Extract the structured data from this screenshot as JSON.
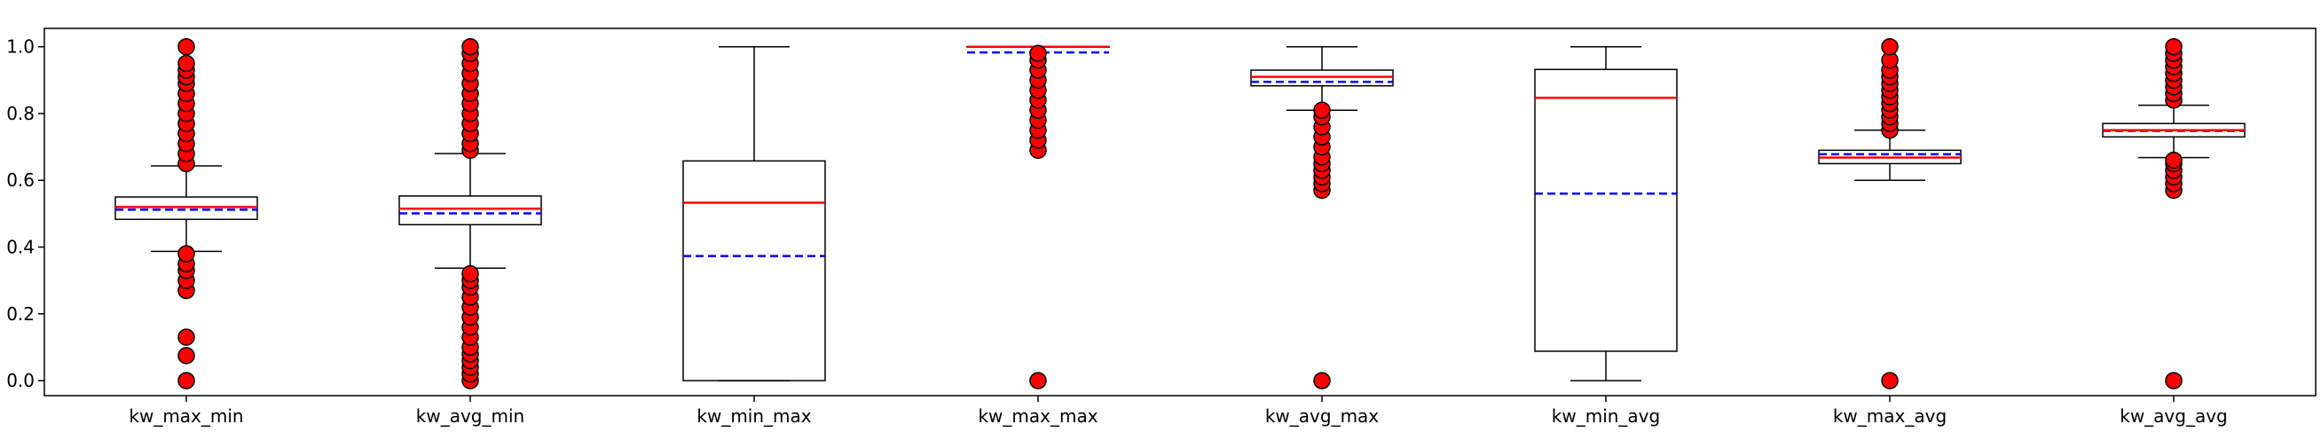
{
  "chart_data": {
    "type": "box",
    "title": "",
    "xlabel": "",
    "ylabel": "",
    "ylim": [
      -0.045,
      1.055
    ],
    "yticks": [
      "0.0",
      "0.2",
      "0.4",
      "0.6",
      "0.8",
      "1.0"
    ],
    "grid": false,
    "colors": {
      "median": "#ff0000",
      "mean": "#0000ff",
      "flier": "#ff0000",
      "box": "#000000"
    },
    "categories": [
      "kw_max_min",
      "kw_avg_min",
      "kw_min_max",
      "kw_max_max",
      "kw_avg_max",
      "kw_min_avg",
      "kw_max_avg",
      "kw_avg_avg"
    ],
    "boxes": [
      {
        "whislo": 0.387,
        "q1": 0.483,
        "med": 0.52,
        "mean": 0.512,
        "q3": 0.55,
        "whishi": 0.643,
        "fliers": [
          0.0,
          0.075,
          0.13,
          0.27,
          0.3,
          0.33,
          0.35,
          0.38,
          0.65,
          0.68,
          0.71,
          0.74,
          0.77,
          0.8,
          0.83,
          0.86,
          0.89,
          0.91,
          0.93,
          0.95,
          1.0
        ]
      },
      {
        "whislo": 0.337,
        "q1": 0.467,
        "med": 0.515,
        "mean": 0.501,
        "q3": 0.553,
        "whishi": 0.68,
        "fliers": [
          0.0,
          0.02,
          0.04,
          0.06,
          0.08,
          0.1,
          0.13,
          0.16,
          0.19,
          0.22,
          0.25,
          0.28,
          0.3,
          0.32,
          0.69,
          0.71,
          0.74,
          0.77,
          0.8,
          0.83,
          0.86,
          0.89,
          0.92,
          0.95,
          0.98,
          1.0
        ]
      },
      {
        "whislo": 0.0,
        "q1": 0.0,
        "med": 0.533,
        "mean": 0.373,
        "q3": 0.658,
        "whishi": 1.0,
        "fliers": []
      },
      {
        "whislo": 1.0,
        "q1": 1.0,
        "med": 1.0,
        "mean": 0.983,
        "q3": 1.0,
        "whishi": 1.0,
        "fliers": [
          0.0,
          0.69,
          0.72,
          0.75,
          0.78,
          0.81,
          0.84,
          0.87,
          0.9,
          0.93,
          0.96,
          0.98
        ]
      },
      {
        "whislo": 0.81,
        "q1": 0.883,
        "med": 0.91,
        "mean": 0.895,
        "q3": 0.93,
        "whishi": 1.0,
        "fliers": [
          0.0,
          0.57,
          0.59,
          0.61,
          0.63,
          0.65,
          0.67,
          0.7,
          0.73,
          0.76,
          0.79,
          0.81
        ]
      },
      {
        "whislo": 0.0,
        "q1": 0.088,
        "med": 0.847,
        "mean": 0.56,
        "q3": 0.932,
        "whishi": 1.0,
        "fliers": []
      },
      {
        "whislo": 0.6,
        "q1": 0.65,
        "med": 0.668,
        "mean": 0.678,
        "q3": 0.69,
        "whishi": 0.75,
        "fliers": [
          0.0,
          0.75,
          0.77,
          0.79,
          0.81,
          0.83,
          0.85,
          0.87,
          0.89,
          0.91,
          0.93,
          0.96,
          1.0
        ]
      },
      {
        "whislo": 0.668,
        "q1": 0.73,
        "med": 0.75,
        "mean": 0.748,
        "q3": 0.77,
        "whishi": 0.825,
        "fliers": [
          0.0,
          0.57,
          0.59,
          0.61,
          0.63,
          0.65,
          0.66,
          0.84,
          0.86,
          0.88,
          0.9,
          0.92,
          0.94,
          0.96,
          0.98,
          1.0
        ]
      }
    ]
  }
}
